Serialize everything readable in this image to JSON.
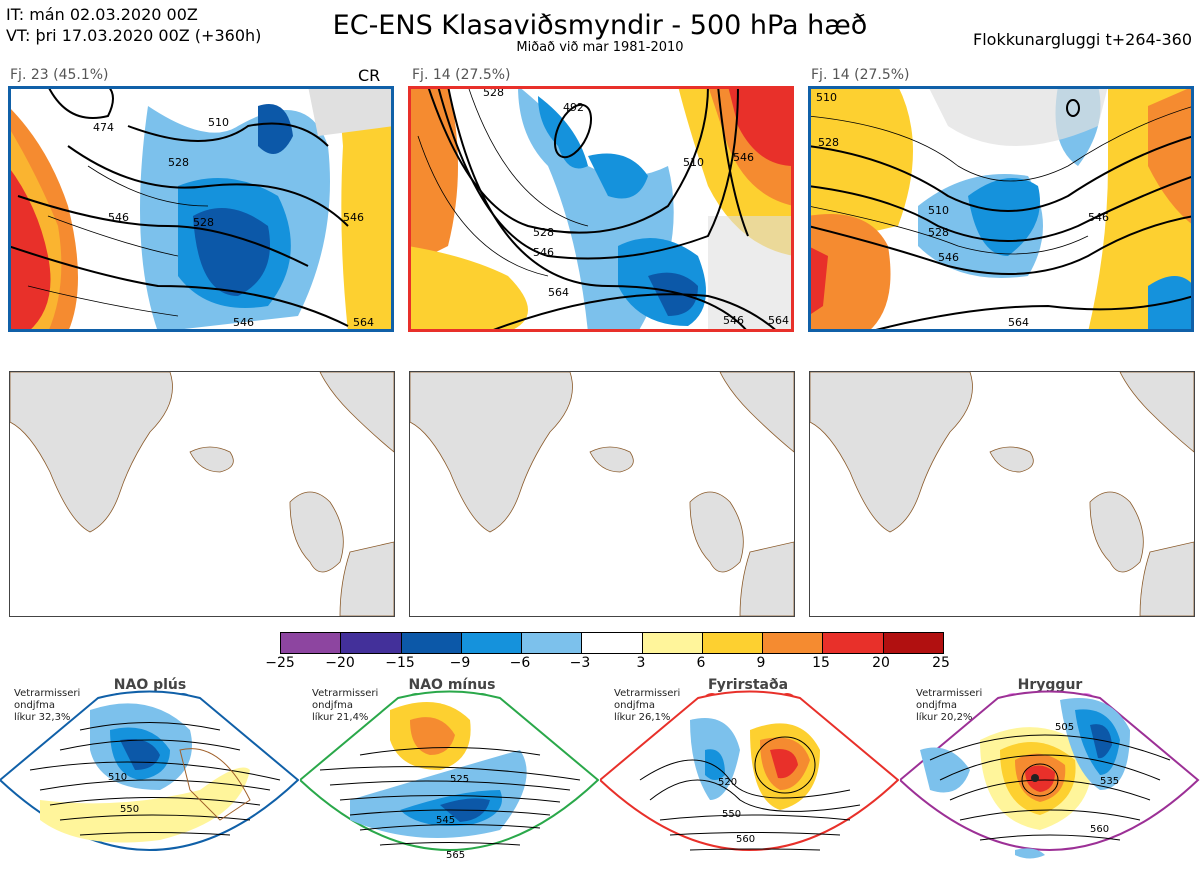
{
  "header": {
    "it_line": "IT: mán 02.03.2020 00Z",
    "vt_line": "VT: þri 17.03.2020 00Z  (+360h)",
    "title": "EC-ENS Klasaviðsmyndir - 500 hPa hæð",
    "subtitle": "Miðað við mar 1981-2010",
    "window": "Flokkunargluggi t+264-360"
  },
  "panels": [
    {
      "label": "Fj. 23 (45.1%)",
      "tag": "CR",
      "border_color": "#1060a8",
      "contours": [
        "474",
        "510",
        "528",
        "546",
        "528",
        "546",
        "546",
        "564"
      ]
    },
    {
      "label": "Fj. 14 (27.5%)",
      "tag": "",
      "border_color": "#e8302a",
      "contours": [
        "528",
        "492",
        "510",
        "528",
        "546",
        "564",
        "546",
        "546",
        "564"
      ]
    },
    {
      "label": "Fj. 14 (27.5%)",
      "tag": "",
      "border_color": "#1060a8",
      "contours": [
        "510",
        "528",
        "510",
        "528",
        "546",
        "546",
        "564"
      ]
    }
  ],
  "legend": {
    "ticks": [
      "−25",
      "−20",
      "−15",
      "−9",
      "−6",
      "−3",
      "3",
      "6",
      "9",
      "15",
      "20",
      "25"
    ],
    "colors": [
      "#8d45a0",
      "#43309a",
      "#0c58a8",
      "#1592dc",
      "#7cc1ec",
      "#ffffff",
      "#fff59b",
      "#fdd030",
      "#f58b30",
      "#e8302a",
      "#b11010"
    ]
  },
  "regimes": [
    {
      "name": "NAO plús",
      "stat_lines": [
        "Vetrarmisseri",
        "ondjfma",
        "líkur 32,3%"
      ],
      "color": "#1060a8",
      "contours": [
        "510",
        "550"
      ]
    },
    {
      "name": "NAO mínus",
      "stat_lines": [
        "Vetrarmisseri",
        "ondjfma",
        "líkur 21,4%"
      ],
      "color": "#2aa84a",
      "contours": [
        "525",
        "545",
        "565"
      ]
    },
    {
      "name": "Fyrirstaða",
      "stat_lines": [
        "Vetrarmisseri",
        "ondjfma",
        "líkur 26,1%"
      ],
      "color": "#e8302a",
      "contours": [
        "520",
        "550",
        "560"
      ]
    },
    {
      "name": "Hryggur",
      "stat_lines": [
        "Vetrarmisseri",
        "ondjfma",
        "líkur 20,2%"
      ],
      "color": "#9c3096",
      "contours": [
        "505",
        "535",
        "560"
      ]
    }
  ]
}
